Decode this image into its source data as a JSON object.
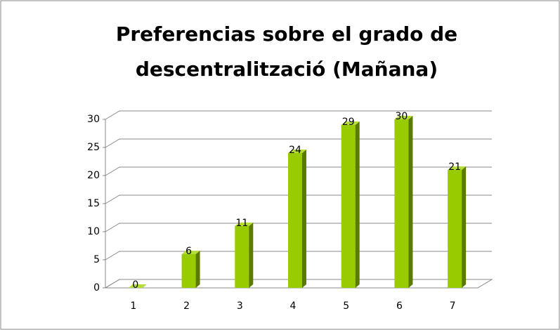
{
  "chart_data": {
    "type": "bar",
    "title": "Preferencias sobre el grado de descentralització (Mañana)",
    "categories": [
      "1",
      "2",
      "3",
      "4",
      "5",
      "6",
      "7"
    ],
    "values": [
      0,
      6,
      11,
      24,
      29,
      30,
      21
    ],
    "color": "#99cc00",
    "ylim": [
      0,
      30
    ],
    "yticks": [
      0,
      5,
      10,
      15,
      20,
      25,
      30
    ],
    "grid": true
  }
}
